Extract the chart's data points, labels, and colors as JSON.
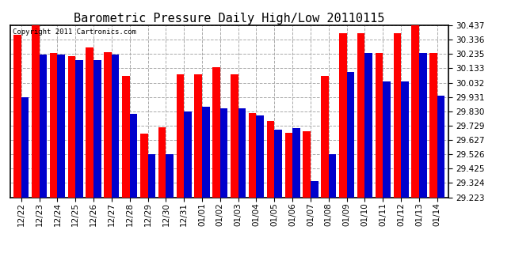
{
  "title": "Barometric Pressure Daily High/Low 20110115",
  "copyright": "Copyright 2011 Cartronics.com",
  "dates": [
    "12/22",
    "12/23",
    "12/24",
    "12/25",
    "12/26",
    "12/27",
    "12/28",
    "12/29",
    "12/30",
    "12/31",
    "01/01",
    "01/02",
    "01/03",
    "01/04",
    "01/05",
    "01/06",
    "01/07",
    "01/08",
    "01/09",
    "01/10",
    "01/11",
    "01/12",
    "01/13",
    "01/14"
  ],
  "highs": [
    30.37,
    30.44,
    30.24,
    30.22,
    30.28,
    30.25,
    30.08,
    29.67,
    29.72,
    30.09,
    30.09,
    30.14,
    30.09,
    29.82,
    29.76,
    29.68,
    29.69,
    30.08,
    30.38,
    30.38,
    30.24,
    30.38,
    30.44,
    30.24
  ],
  "lows": [
    29.93,
    30.23,
    30.23,
    30.19,
    30.19,
    30.23,
    29.81,
    29.53,
    29.53,
    29.83,
    29.86,
    29.85,
    29.85,
    29.8,
    29.7,
    29.71,
    29.34,
    29.53,
    30.11,
    30.24,
    30.04,
    30.04,
    30.24,
    29.94
  ],
  "high_color": "#FF0000",
  "low_color": "#0000CC",
  "ylim_min": 29.223,
  "ylim_max": 30.437,
  "yticks": [
    29.223,
    29.324,
    29.425,
    29.526,
    29.627,
    29.729,
    29.83,
    29.931,
    30.032,
    30.133,
    30.235,
    30.336,
    30.437
  ],
  "bg_color": "#FFFFFF",
  "grid_color": "#AAAAAA",
  "title_fontsize": 11,
  "bar_width": 0.42,
  "fig_bg": "#FFFFFF",
  "axes_bg": "#FFFFFF",
  "border_color": "#000000"
}
